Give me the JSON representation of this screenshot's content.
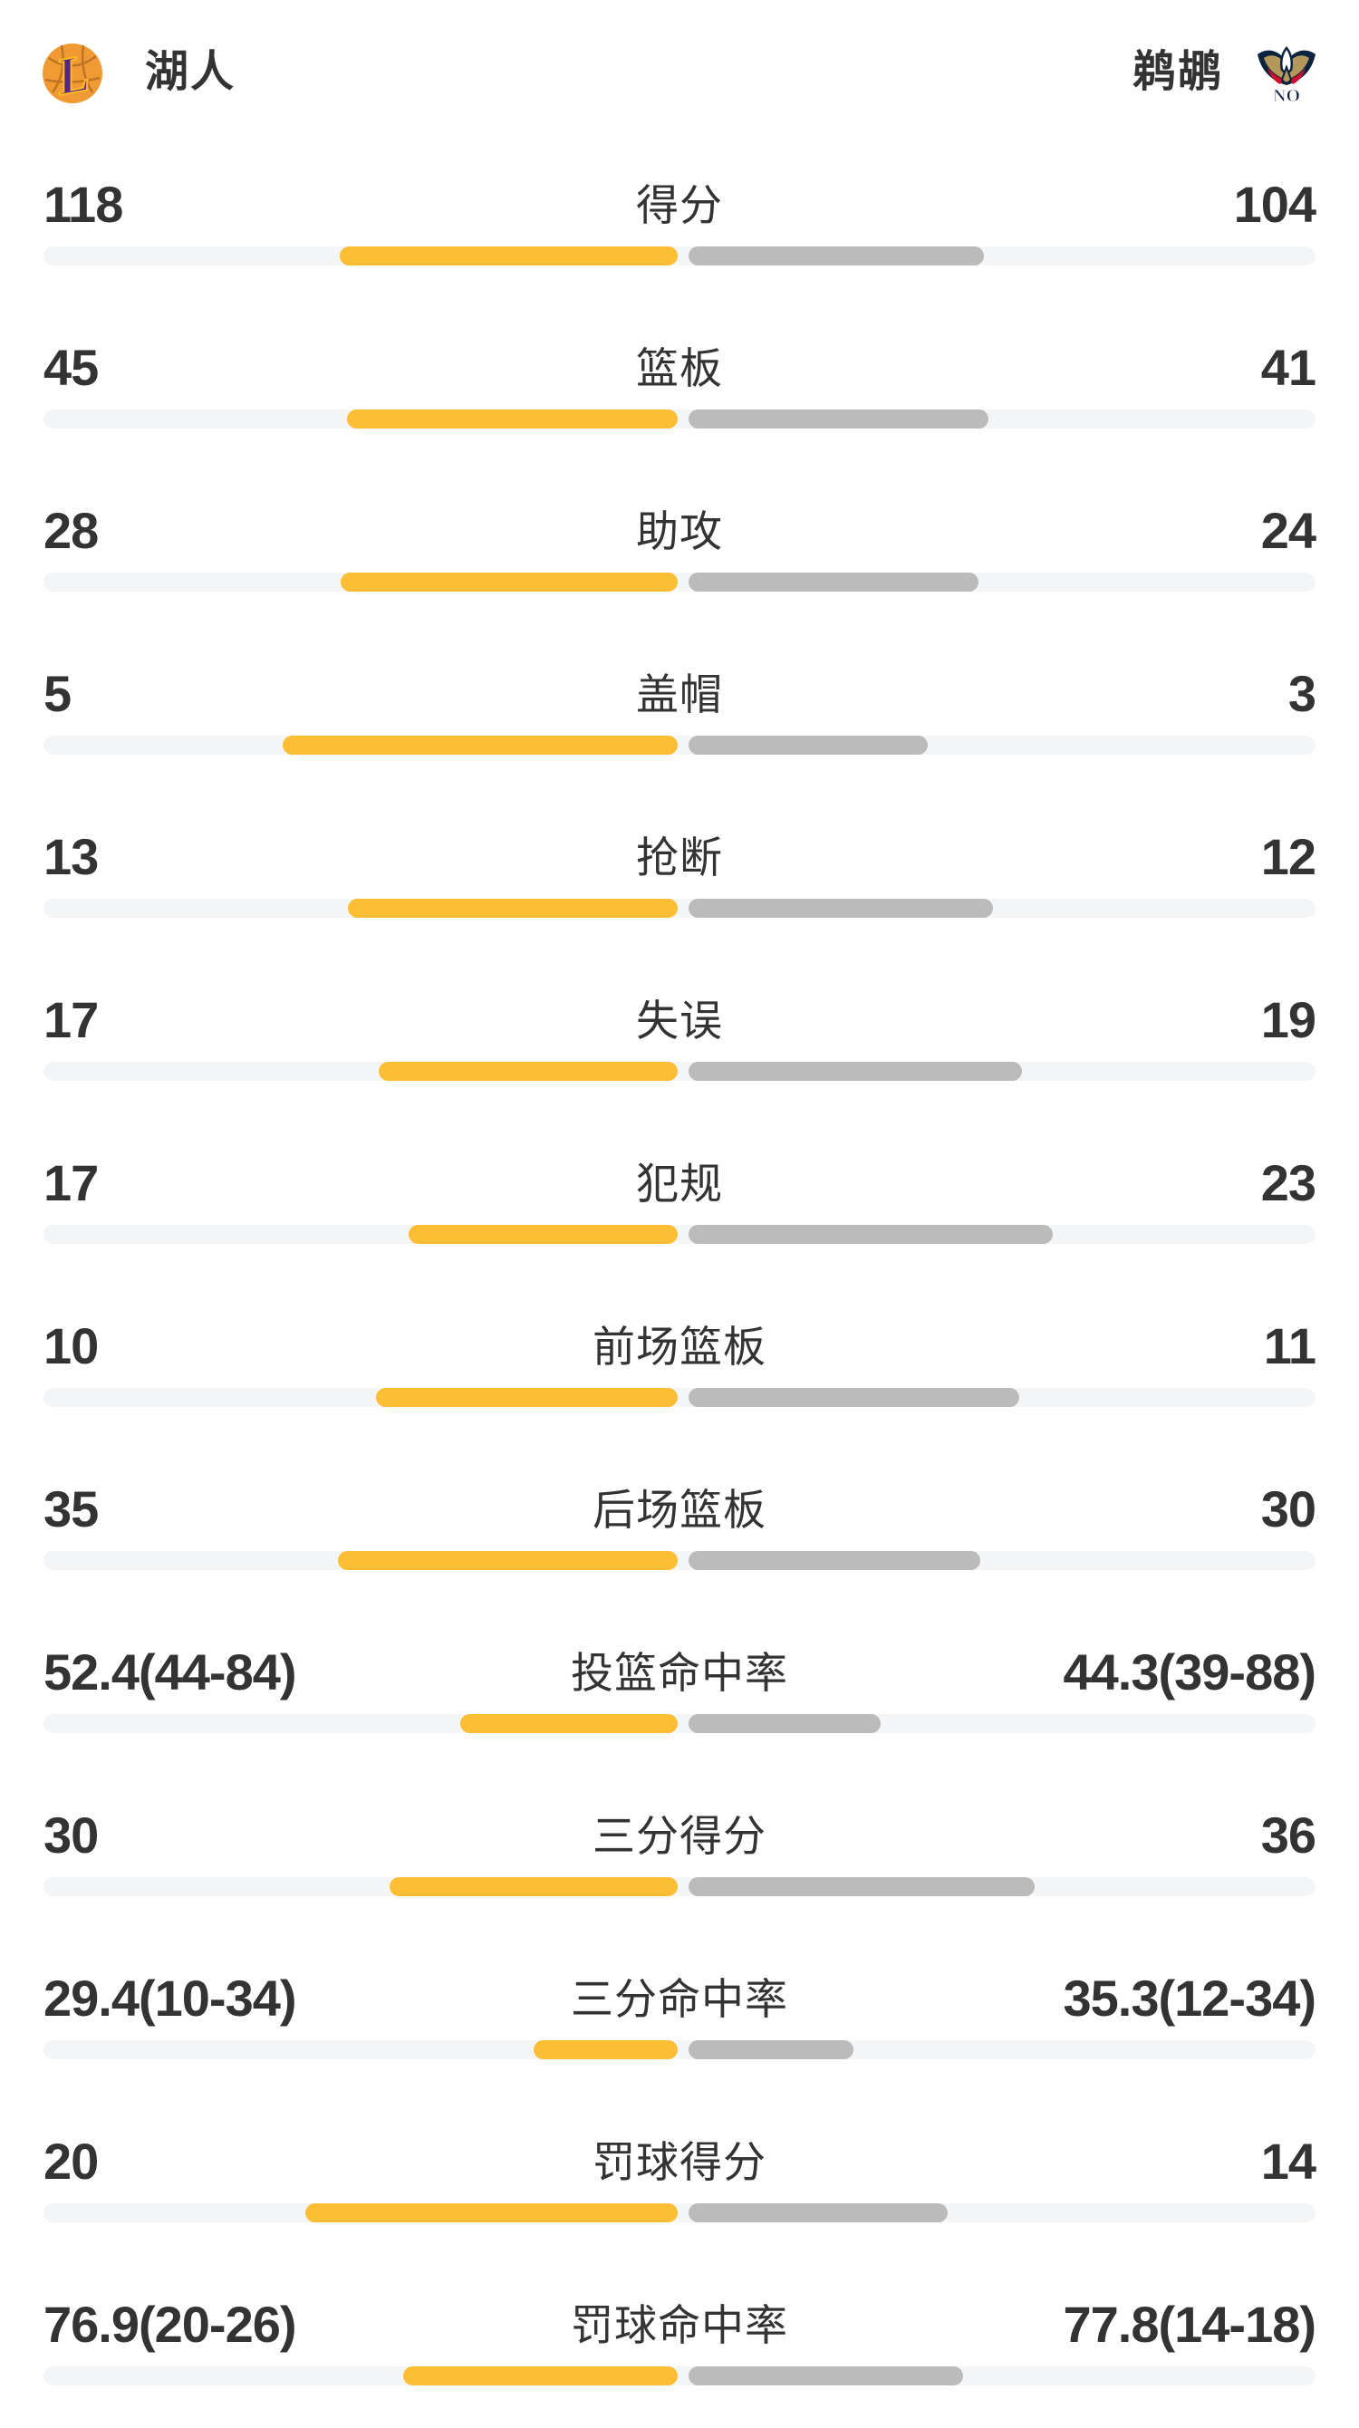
{
  "header": {
    "home_team": {
      "name": "湖人",
      "logo": "lakers-logo"
    },
    "away_team": {
      "name": "鹈鹕",
      "logo": "pelicans-logo"
    }
  },
  "colors": {
    "home_bar": "#FBBE34",
    "away_bar": "#BBBBBB",
    "track": "#F4F5F7",
    "text": "#333333",
    "lakers_purple": "#552583",
    "lakers_gold": "#FDB927",
    "pelicans_navy": "#0C2340",
    "pelicans_gold": "#B4975A",
    "pelicans_red": "#CE0E2D"
  },
  "rows": [
    {
      "label": "得分",
      "left": "118",
      "right": "104",
      "left_bar": 373,
      "right_bar": 326
    },
    {
      "label": "篮板",
      "left": "45",
      "right": "41",
      "left_bar": 365,
      "right_bar": 331
    },
    {
      "label": "助攻",
      "left": "28",
      "right": "24",
      "left_bar": 372,
      "right_bar": 320
    },
    {
      "label": "盖帽",
      "left": "5",
      "right": "3",
      "left_bar": 436,
      "right_bar": 264
    },
    {
      "label": "抢断",
      "left": "13",
      "right": "12",
      "left_bar": 364,
      "right_bar": 336
    },
    {
      "label": "失误",
      "left": "17",
      "right": "19",
      "left_bar": 330,
      "right_bar": 368
    },
    {
      "label": "犯规",
      "left": "17",
      "right": "23",
      "left_bar": 297,
      "right_bar": 402
    },
    {
      "label": "前场篮板",
      "left": "10",
      "right": "11",
      "left_bar": 333,
      "right_bar": 365
    },
    {
      "label": "后场篮板",
      "left": "35",
      "right": "30",
      "left_bar": 375,
      "right_bar": 322
    },
    {
      "label": "投篮命中率",
      "left": "52.4(44-84)",
      "right": "44.3(39-88)",
      "left_bar": 240,
      "right_bar": 212
    },
    {
      "label": "三分得分",
      "left": "30",
      "right": "36",
      "left_bar": 318,
      "right_bar": 382
    },
    {
      "label": "三分命中率",
      "left": "29.4(10-34)",
      "right": "35.3(12-34)",
      "left_bar": 159,
      "right_bar": 182
    },
    {
      "label": "罚球得分",
      "left": "20",
      "right": "14",
      "left_bar": 411,
      "right_bar": 286
    },
    {
      "label": "罚球命中率",
      "left": "76.9(20-26)",
      "right": "77.8(14-18)",
      "left_bar": 303,
      "right_bar": 303
    }
  ],
  "chart_data": {
    "type": "bar",
    "orientation": "horizontal-paired",
    "categories": [
      "得分",
      "篮板",
      "助攻",
      "盖帽",
      "抢断",
      "失误",
      "犯规",
      "前场篮板",
      "后场篮板",
      "投篮命中率",
      "三分得分",
      "三分命中率",
      "罚球得分",
      "罚球命中率"
    ],
    "series": [
      {
        "name": "湖人",
        "color": "#FBBE34",
        "values": [
          118,
          45,
          28,
          5,
          13,
          17,
          17,
          10,
          35,
          52.4,
          30,
          29.4,
          20,
          76.9
        ],
        "display": [
          "118",
          "45",
          "28",
          "5",
          "13",
          "17",
          "17",
          "10",
          "35",
          "52.4(44-84)",
          "30",
          "29.4(10-34)",
          "20",
          "76.9(20-26)"
        ]
      },
      {
        "name": "鹈鹕",
        "color": "#BBBBBB",
        "values": [
          104,
          41,
          24,
          3,
          12,
          19,
          23,
          11,
          30,
          44.3,
          36,
          35.3,
          14,
          77.8
        ],
        "display": [
          "104",
          "41",
          "24",
          "3",
          "12",
          "19",
          "23",
          "11",
          "30",
          "44.3(39-88)",
          "36",
          "35.3(12-34)",
          "14",
          "77.8(14-18)"
        ]
      }
    ],
    "notes": "Bars grow outward from the center toward each team; within a row lengths are proportional to each team's share of the stat.",
    "legend_position": "none",
    "grid": false
  }
}
